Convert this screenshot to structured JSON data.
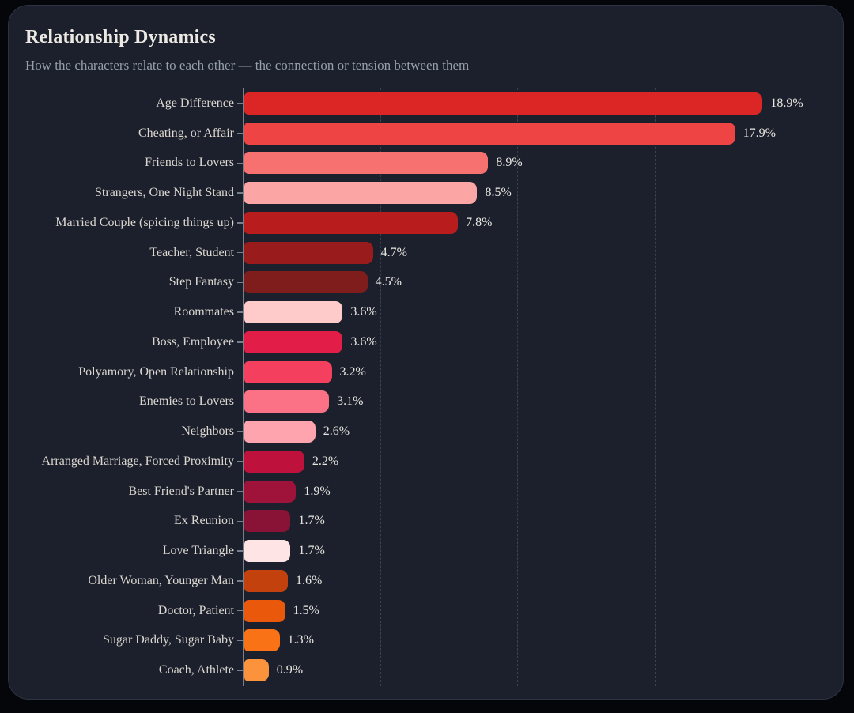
{
  "header": {
    "title": "Relationship Dynamics",
    "subtitle": "How the characters relate to each other — the connection or tension between them"
  },
  "theme": {
    "page_background": "#050609",
    "card_background": "#1b202c",
    "card_border": "#2c3342",
    "title_color": "#ece9e3",
    "subtitle_color": "#96a0ab",
    "label_color": "#dcd7d0",
    "value_color": "#e9e6e0",
    "axis_color": "#78808c",
    "gridline_color": "#3a4150"
  },
  "chart_data": {
    "type": "bar",
    "orientation": "horizontal",
    "title": "Relationship Dynamics",
    "xlabel": "",
    "ylabel": "",
    "unit": "%",
    "xlim": [
      0,
      20
    ],
    "grid": "vertical-dashed",
    "gridline_values": [
      5,
      10,
      15,
      20
    ],
    "categories": [
      "Age Difference",
      "Cheating, or Affair",
      "Friends to Lovers",
      "Strangers, One Night Stand",
      "Married Couple (spicing things up)",
      "Teacher, Student",
      "Step Fantasy",
      "Roommates",
      "Boss, Employee",
      "Polyamory, Open Relationship",
      "Enemies to Lovers",
      "Neighbors",
      "Arranged Marriage, Forced Proximity",
      "Best Friend's Partner",
      "Ex Reunion",
      "Love Triangle",
      "Older Woman, Younger Man",
      "Doctor, Patient",
      "Sugar Daddy, Sugar Baby",
      "Coach, Athlete"
    ],
    "values": [
      18.9,
      17.9,
      8.9,
      8.5,
      7.8,
      4.7,
      4.5,
      3.6,
      3.6,
      3.2,
      3.1,
      2.6,
      2.2,
      1.9,
      1.7,
      1.7,
      1.6,
      1.5,
      1.3,
      0.9
    ],
    "value_labels": [
      "18.9%",
      "17.9%",
      "8.9%",
      "8.5%",
      "7.8%",
      "4.7%",
      "4.5%",
      "3.6%",
      "3.6%",
      "3.2%",
      "3.1%",
      "2.6%",
      "2.2%",
      "1.9%",
      "1.7%",
      "1.7%",
      "1.6%",
      "1.5%",
      "1.3%",
      "0.9%"
    ],
    "bar_colors": [
      "#dc2626",
      "#ef4444",
      "#f87171",
      "#fca5a5",
      "#b91c1c",
      "#991b1b",
      "#7f1d1d",
      "#fecaca",
      "#e11d48",
      "#f43f5e",
      "#fb7185",
      "#fda4af",
      "#be123c",
      "#9f1239",
      "#881337",
      "#ffe4e6",
      "#c2410c",
      "#ea580c",
      "#f97316",
      "#fb923c"
    ]
  }
}
